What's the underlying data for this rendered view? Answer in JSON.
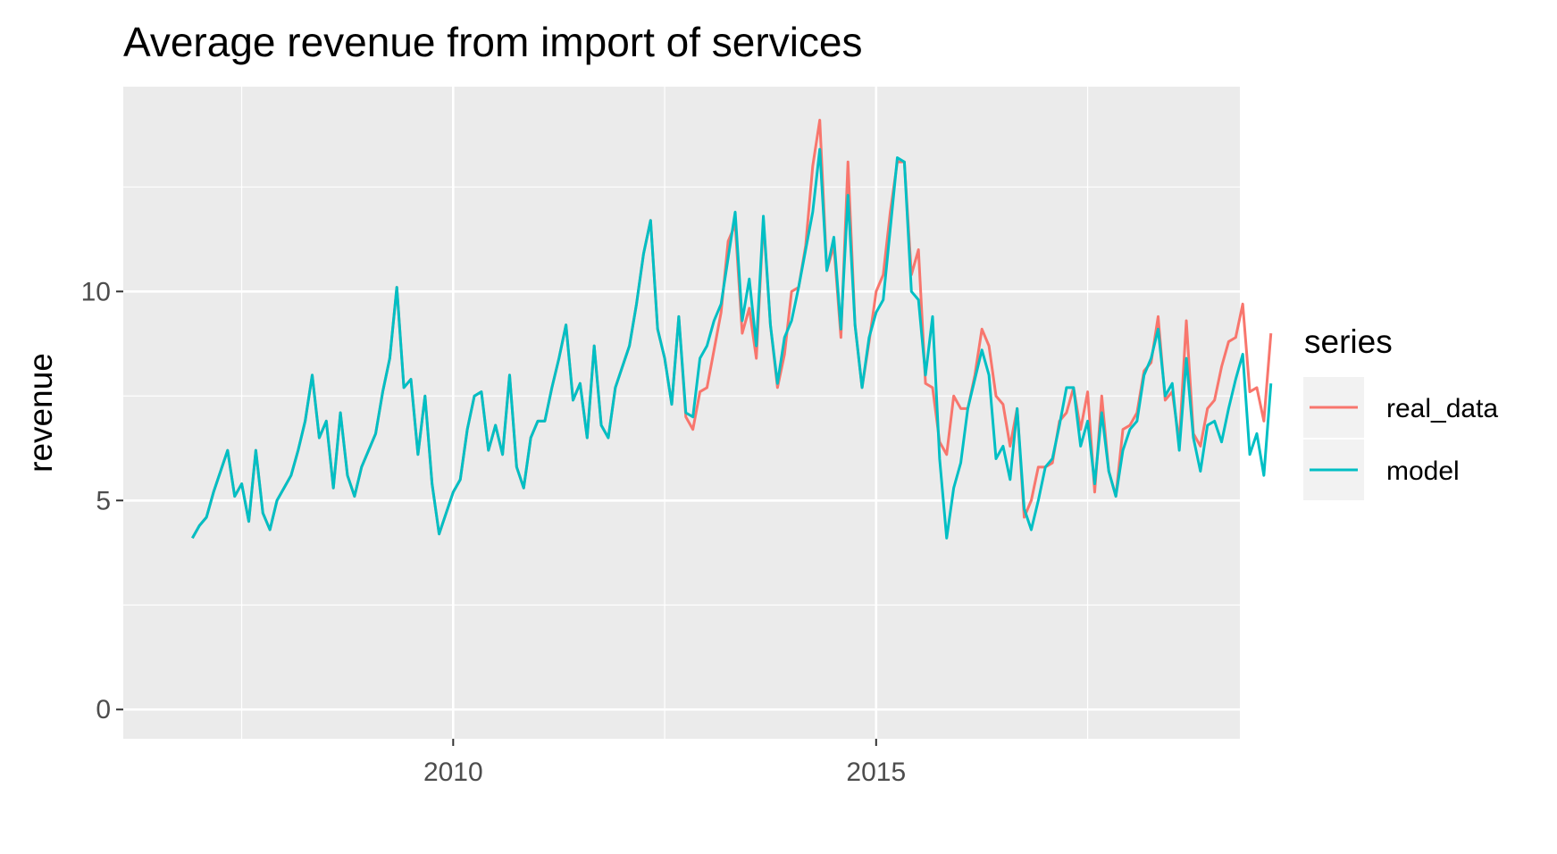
{
  "chart_data": {
    "type": "line",
    "title": "Average revenue from import of services",
    "xlabel": "",
    "ylabel": "revenue",
    "xlim": [
      2006.1,
      2019.3
    ],
    "ylim": [
      -0.7,
      14.9
    ],
    "x_ticks": [
      2010,
      2015
    ],
    "x_tick_labels": [
      "2010",
      "2015"
    ],
    "y_ticks": [
      0,
      5,
      10
    ],
    "y_tick_labels": [
      "0",
      "5",
      "10"
    ],
    "grid": true,
    "background": "#ebebeb",
    "legend": {
      "title": "series",
      "placement": "right"
    },
    "x_start": 2006.917,
    "x_step": 0.0833333,
    "series": [
      {
        "name": "real_data",
        "color": "#f8766d",
        "values": [
          4.1,
          4.4,
          4.6,
          5.2,
          5.7,
          6.2,
          5.1,
          5.4,
          4.5,
          6.2,
          4.7,
          4.3,
          5.0,
          5.3,
          5.6,
          6.2,
          6.9,
          8.0,
          6.5,
          6.9,
          5.3,
          7.1,
          5.6,
          5.1,
          5.8,
          6.2,
          6.6,
          7.6,
          8.4,
          10.1,
          7.7,
          7.9,
          6.1,
          7.5,
          5.4,
          4.2,
          4.7,
          5.2,
          5.5,
          6.7,
          7.5,
          7.6,
          6.2,
          6.8,
          6.1,
          8.0,
          5.8,
          5.3,
          6.5,
          6.9,
          6.9,
          7.7,
          8.4,
          9.2,
          7.4,
          7.8,
          6.5,
          8.7,
          6.8,
          6.5,
          7.7,
          8.2,
          8.7,
          9.7,
          10.9,
          11.7,
          9.1,
          8.4,
          7.3,
          9.4,
          7.0,
          6.7,
          7.6,
          7.7,
          8.6,
          9.5,
          11.2,
          11.6,
          9.0,
          9.6,
          8.4,
          11.7,
          9.2,
          7.7,
          8.5,
          10.0,
          10.1,
          11.1,
          13.0,
          14.1,
          10.5,
          11.1,
          8.9,
          13.1,
          9.2,
          7.7,
          8.8,
          10.0,
          10.4,
          11.9,
          13.1,
          13.1,
          10.4,
          11.0,
          7.8,
          7.7,
          6.4,
          6.1,
          7.5,
          7.2,
          7.2,
          8.0,
          9.1,
          8.7,
          7.5,
          7.3,
          6.3,
          7.2,
          4.6,
          5.0,
          5.8,
          5.8,
          5.9,
          6.9,
          7.1,
          7.7,
          6.7,
          7.6,
          5.2,
          7.5,
          5.7,
          5.1,
          6.7,
          6.8,
          7.1,
          8.1,
          8.3,
          9.4,
          7.4,
          7.6,
          6.4,
          9.3,
          6.6,
          6.3,
          7.2,
          7.4,
          8.2,
          8.8,
          8.9,
          9.7,
          7.6,
          7.7,
          6.9,
          9.0
        ]
      },
      {
        "name": "model",
        "color": "#00bfc4",
        "values": [
          4.1,
          4.4,
          4.6,
          5.2,
          5.7,
          6.2,
          5.1,
          5.4,
          4.5,
          6.2,
          4.7,
          4.3,
          5.0,
          5.3,
          5.6,
          6.2,
          6.9,
          8.0,
          6.5,
          6.9,
          5.3,
          7.1,
          5.6,
          5.1,
          5.8,
          6.2,
          6.6,
          7.6,
          8.4,
          10.1,
          7.7,
          7.9,
          6.1,
          7.5,
          5.4,
          4.2,
          4.7,
          5.2,
          5.5,
          6.7,
          7.5,
          7.6,
          6.2,
          6.8,
          6.1,
          8.0,
          5.8,
          5.3,
          6.5,
          6.9,
          6.9,
          7.7,
          8.4,
          9.2,
          7.4,
          7.8,
          6.5,
          8.7,
          6.8,
          6.5,
          7.7,
          8.2,
          8.7,
          9.7,
          10.9,
          11.7,
          9.1,
          8.4,
          7.3,
          9.4,
          7.1,
          7.0,
          8.4,
          8.7,
          9.3,
          9.7,
          10.8,
          11.9,
          9.3,
          10.3,
          8.7,
          11.8,
          9.2,
          7.8,
          8.9,
          9.3,
          10.1,
          11.0,
          11.9,
          13.4,
          10.5,
          11.3,
          9.1,
          12.3,
          9.2,
          7.7,
          8.9,
          9.5,
          9.8,
          11.5,
          13.2,
          13.1,
          10.0,
          9.8,
          8.0,
          9.4,
          6.0,
          4.1,
          5.3,
          5.9,
          7.2,
          7.9,
          8.6,
          8.0,
          6.0,
          6.3,
          5.5,
          7.2,
          4.8,
          4.3,
          5.0,
          5.8,
          6.0,
          6.8,
          7.7,
          7.7,
          6.3,
          6.9,
          5.4,
          7.1,
          5.7,
          5.1,
          6.2,
          6.7,
          6.9,
          8.0,
          8.4,
          9.1,
          7.5,
          7.8,
          6.2,
          8.4,
          6.5,
          5.7,
          6.8,
          6.9,
          6.4,
          7.2,
          7.9,
          8.5,
          6.1,
          6.6,
          5.6,
          7.8
        ]
      }
    ]
  }
}
